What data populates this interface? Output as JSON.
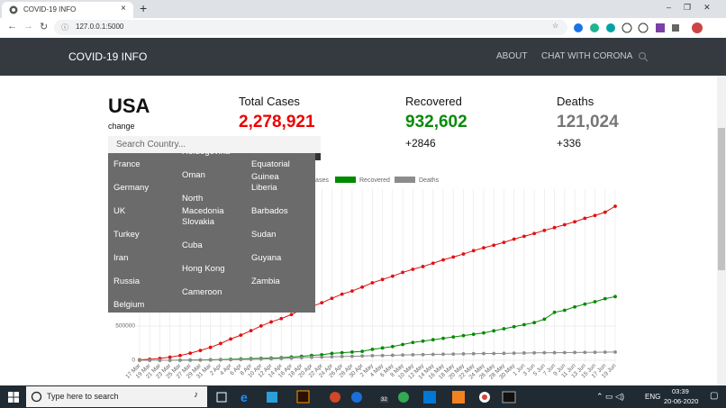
{
  "browser": {
    "tab_title": "COVID-19 INFO",
    "url": "127.0.0.1:5000"
  },
  "navbar": {
    "brand": "COVID-19 INFO",
    "links": [
      "ABOUT",
      "CHAT WITH CORONA"
    ]
  },
  "stats": {
    "country": "USA",
    "change_link": "change",
    "search_placeholder": "Search Country...",
    "cards": [
      {
        "label": "Total Cases",
        "value": "2,278,921"
      },
      {
        "label": "Recovered",
        "value": "932,602",
        "delta": "+2846"
      },
      {
        "label": "Deaths",
        "value": "121,024",
        "delta": "+336"
      }
    ]
  },
  "dropdown": {
    "columns": [
      [
        "France",
        "Germany",
        "UK",
        "Turkey",
        "Iran",
        "Russia",
        "Belgium"
      ],
      [
        "Herzegovina",
        "Oman",
        "North Macedonia",
        "Slovakia",
        "Cuba",
        "Hong Kong",
        "Cameroon"
      ],
      [
        "Equatorial Guinea",
        "Liberia",
        "Barbados",
        "Sudan",
        "Guyana",
        "Zambia"
      ]
    ]
  },
  "chart_data": {
    "type": "line",
    "categories": [
      "17 Mar",
      "19 Mar",
      "21 Mar",
      "23 Mar",
      "25 Mar",
      "27 Mar",
      "29 Mar",
      "31 Mar",
      "2 Apr",
      "4 Apr",
      "6 Apr",
      "8 Apr",
      "10 Apr",
      "12 Apr",
      "14 Apr",
      "16 Apr",
      "18 Apr",
      "20 Apr",
      "22 Apr",
      "24 Apr",
      "26 Apr",
      "28 Apr",
      "30 Apr",
      "2 May",
      "4 May",
      "6 May",
      "8 May",
      "10 May",
      "12 May",
      "14 May",
      "16 May",
      "18 May",
      "20 May",
      "22 May",
      "24 May",
      "26 May",
      "28 May",
      "30 May",
      "1 Jun",
      "3 Jun",
      "5 Jun",
      "7 Jun",
      "9 Jun",
      "11 Jun",
      "13 Jun",
      "15 Jun",
      "17 Jun",
      "19 Jun"
    ],
    "series": [
      {
        "name": "Cases",
        "color": "#e01010",
        "values": [
          6000,
          14000,
          26000,
          46000,
          69000,
          104000,
          143000,
          188000,
          245000,
          311000,
          367000,
          432000,
          501000,
          560000,
          609000,
          668000,
          739000,
          784000,
          840000,
          905000,
          965000,
          1012000,
          1069000,
          1132000,
          1180000,
          1228000,
          1284000,
          1329000,
          1369000,
          1418000,
          1467000,
          1508000,
          1552000,
          1601000,
          1643000,
          1681000,
          1722000,
          1770000,
          1811000,
          1852000,
          1897000,
          1938000,
          1980000,
          2023000,
          2074000,
          2115000,
          2163000,
          2250000
        ]
      },
      {
        "name": "Recovered",
        "color": "#008a00",
        "values": [
          0,
          200,
          400,
          600,
          1000,
          2500,
          5000,
          8000,
          10000,
          15000,
          19000,
          24000,
          28000,
          32000,
          38000,
          47000,
          58000,
          71000,
          80000,
          100000,
          110000,
          120000,
          130000,
          160000,
          180000,
          200000,
          230000,
          260000,
          280000,
          300000,
          320000,
          340000,
          360000,
          380000,
          400000,
          430000,
          460000,
          490000,
          520000,
          550000,
          600000,
          700000,
          730000,
          780000,
          820000,
          855000,
          900000,
          930000
        ]
      },
      {
        "name": "Deaths",
        "color": "#8c8c8c",
        "values": [
          100,
          200,
          300,
          600,
          1000,
          1600,
          2600,
          4000,
          6000,
          8500,
          11000,
          14000,
          18000,
          22000,
          26000,
          32000,
          38000,
          42000,
          46000,
          51000,
          55000,
          58000,
          63000,
          67000,
          69000,
          73000,
          77000,
          80000,
          82000,
          86000,
          88000,
          90000,
          93000,
          96000,
          98000,
          99000,
          101000,
          104000,
          106000,
          108000,
          110000,
          111000,
          112000,
          114000,
          115000,
          116000,
          118000,
          120000
        ]
      }
    ],
    "ylim": [
      0,
      2500000
    ],
    "yticks": [
      0,
      500000
    ],
    "grid": true
  },
  "taskbar": {
    "search": "Type here to search",
    "badge": "32",
    "language": "ENG",
    "time": "03:39",
    "date": "20-06-2020"
  }
}
